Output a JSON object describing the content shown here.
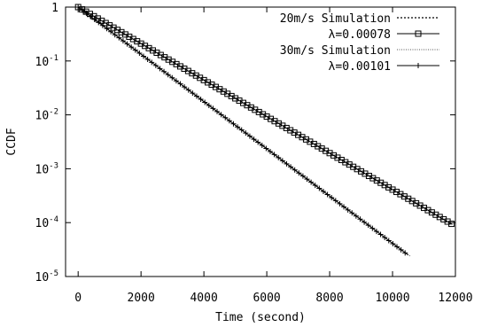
{
  "chart_data": {
    "type": "line",
    "xlabel": "Time (second)",
    "ylabel": "CCDF",
    "xlim": [
      -400,
      12000
    ],
    "ylim": [
      1e-05,
      1
    ],
    "yscale": "log",
    "grid": false,
    "legend_position": "top-right",
    "x_ticks": [
      {
        "value": 0,
        "label": "0"
      },
      {
        "value": 2000,
        "label": "2000"
      },
      {
        "value": 4000,
        "label": "4000"
      },
      {
        "value": 6000,
        "label": "6000"
      },
      {
        "value": 8000,
        "label": "8000"
      },
      {
        "value": 10000,
        "label": "10000"
      },
      {
        "value": 12000,
        "label": "12000"
      }
    ],
    "y_ticks": [
      {
        "value": 1,
        "base": "1",
        "exp": ""
      },
      {
        "value": 0.1,
        "base": "10",
        "exp": "-1"
      },
      {
        "value": 0.01,
        "base": "10",
        "exp": "-2"
      },
      {
        "value": 0.001,
        "base": "10",
        "exp": "-3"
      },
      {
        "value": 0.0001,
        "base": "10",
        "exp": "-4"
      },
      {
        "value": 1e-05,
        "base": "10",
        "exp": "-5"
      }
    ],
    "series": [
      {
        "name": "20m/s Simulation",
        "style": "dotted-line",
        "x": [
          0,
          1000,
          2000,
          3000,
          4000,
          5000,
          6000,
          7000,
          8000,
          9000,
          10000,
          11000,
          11900
        ],
        "y": [
          1.0,
          0.458,
          0.21,
          0.0964,
          0.0442,
          0.0203,
          0.0093,
          0.00426,
          0.00195,
          0.000895,
          0.00041,
          0.000188,
          9.24e-05
        ]
      },
      {
        "name": "λ=0.00078",
        "style": "line-square-markers",
        "lambda": 0.00078,
        "x": [
          0,
          1000,
          2000,
          3000,
          4000,
          5000,
          6000,
          7000,
          8000,
          9000,
          10000,
          11000,
          11900
        ],
        "y": [
          1.0,
          0.458,
          0.21,
          0.0964,
          0.0442,
          0.0203,
          0.0093,
          0.00426,
          0.00195,
          0.000895,
          0.00041,
          0.000188,
          9.24e-05
        ]
      },
      {
        "name": "30m/s Simulation",
        "style": "fine-dotted-line",
        "x": [
          0,
          1000,
          2000,
          3000,
          4000,
          5000,
          6000,
          7000,
          8000,
          9000,
          10000,
          10500
        ],
        "y": [
          1.0,
          0.364,
          0.133,
          0.0483,
          0.0176,
          0.0064,
          0.00234,
          0.00085,
          0.00031,
          0.000113,
          4.12e-05,
          2.49e-05
        ]
      },
      {
        "name": "λ=0.00101",
        "style": "line-plus-markers",
        "lambda": 0.00101,
        "x": [
          0,
          1000,
          2000,
          3000,
          4000,
          5000,
          6000,
          7000,
          8000,
          9000,
          10000,
          10500
        ],
        "y": [
          1.0,
          0.364,
          0.133,
          0.0483,
          0.0176,
          0.0064,
          0.00234,
          0.00085,
          0.00031,
          0.000113,
          4.12e-05,
          2.49e-05
        ]
      }
    ]
  }
}
